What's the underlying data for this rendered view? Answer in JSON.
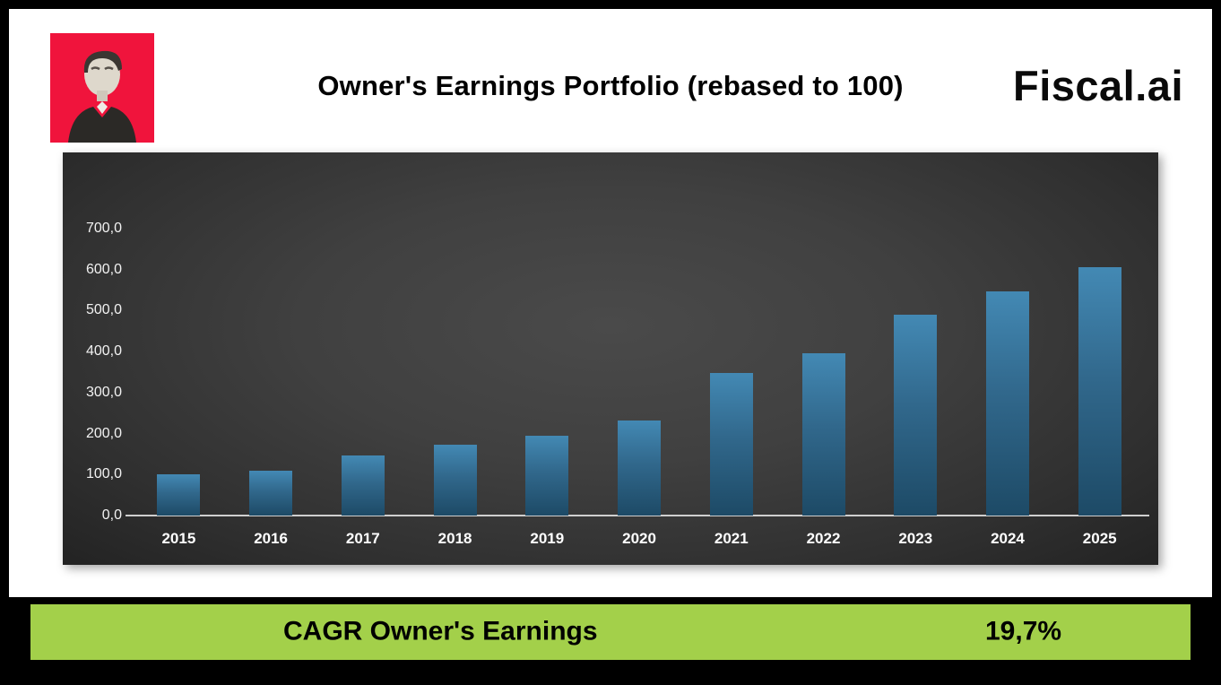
{
  "header": {
    "title": "Owner's Earnings Portfolio (rebased to 100)",
    "logo_text": "Fiscal.ai"
  },
  "chart_data": {
    "type": "bar",
    "title": "Owner's Earnings Portfolio (rebased to 100)",
    "categories": [
      "2015",
      "2016",
      "2017",
      "2018",
      "2019",
      "2020",
      "2021",
      "2022",
      "2023",
      "2024",
      "2025"
    ],
    "values": [
      100,
      109,
      147,
      172,
      195,
      231,
      348,
      395,
      490,
      546,
      605
    ],
    "xlabel": "",
    "ylabel": "",
    "ylim": [
      0,
      700
    ],
    "ytick_step": 100,
    "ytick_labels": [
      "0,0",
      "100,0",
      "200,0",
      "300,0",
      "400,0",
      "500,0",
      "600,0",
      "700,0"
    ],
    "grid": false,
    "legend_position": "none",
    "background": "dark-gradient",
    "bar_color_top": "#4389b4",
    "bar_color_bottom": "#1d4a66"
  },
  "footer": {
    "label": "CAGR Owner's Earnings",
    "value": "19,7%"
  },
  "colors": {
    "accent_green": "#a3d04a",
    "avatar_red": "#f0143c",
    "frame_black": "#000000",
    "chart_bg": "#3d3d3d",
    "axis_text": "#f2f2f2"
  }
}
